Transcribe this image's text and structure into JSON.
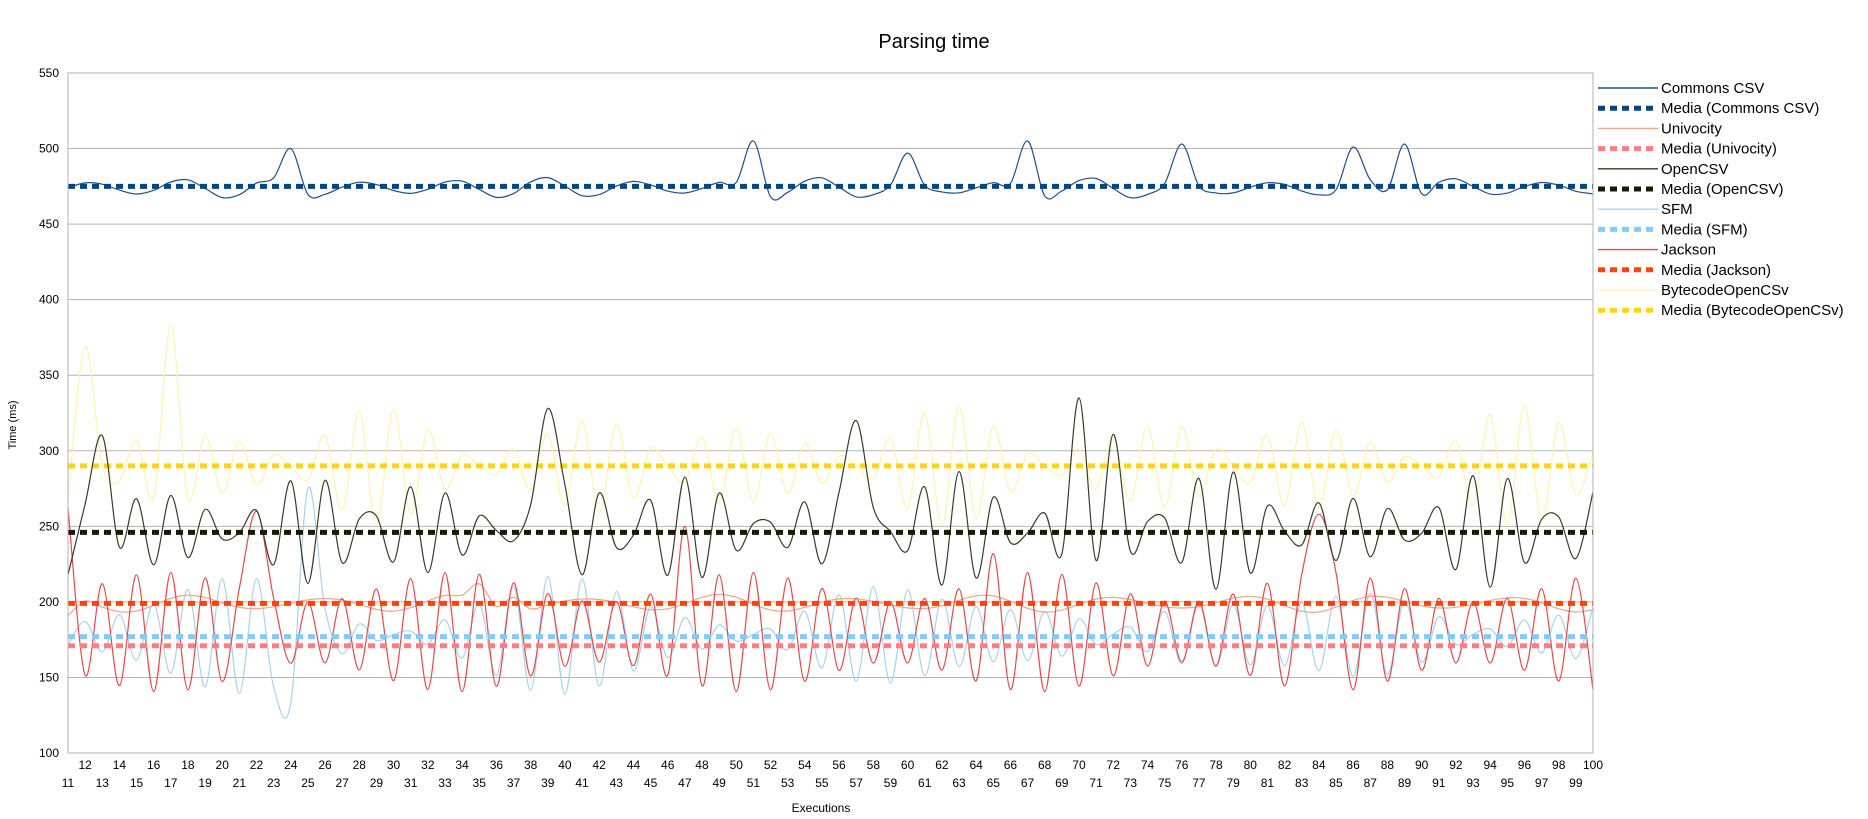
{
  "chart_data": {
    "type": "line",
    "title": "Parsing time",
    "xlabel": "Executions",
    "ylabel": "Time (ms)",
    "ylim": [
      100,
      550
    ],
    "yticks": [
      100,
      150,
      200,
      250,
      300,
      350,
      400,
      450,
      500,
      550
    ],
    "xlim": [
      11,
      100
    ],
    "grid": true,
    "legend_position": "right",
    "series": [
      {
        "name": "Commons CSV",
        "color": "#1f4e8c",
        "style": "solid",
        "mean": 474,
        "amp": 7,
        "period": 5.3,
        "peaks": [
          [
            24,
            500
          ],
          [
            51,
            505
          ],
          [
            60,
            497
          ],
          [
            67,
            505
          ],
          [
            76,
            503
          ],
          [
            86,
            501
          ],
          [
            89,
            503
          ]
        ]
      },
      {
        "name": "Media (Commons CSV)",
        "color": "#004586",
        "style": "dashed",
        "value": 475
      },
      {
        "name": "Univocity",
        "color": "#f4a58a",
        "style": "solid",
        "mean": 199,
        "amp": 6,
        "period": 7.7,
        "peaks": [
          [
            11,
            191
          ],
          [
            35,
            212
          ],
          [
            37,
            203
          ]
        ]
      },
      {
        "name": "Media (Univocity)",
        "color": "#ff7f7f",
        "style": "dashed",
        "value": 171
      },
      {
        "name": "OpenCSV",
        "color": "#3a3a2a",
        "style": "solid",
        "mean": 248,
        "amp": 40,
        "period": 2.3,
        "peaks": [
          [
            13,
            310
          ],
          [
            39,
            328
          ],
          [
            57,
            320
          ],
          [
            70,
            335
          ],
          [
            72,
            311
          ]
        ]
      },
      {
        "name": "Media (OpenCSV)",
        "color": "#1a1a00",
        "style": "dashed",
        "value": 246
      },
      {
        "name": "SFM",
        "color": "#a8d1f0",
        "style": "solid",
        "mean": 178,
        "amp": 40,
        "period": 2.1,
        "peaks": [
          [
            25,
            275
          ],
          [
            24,
            133
          ]
        ]
      },
      {
        "name": "Media (SFM)",
        "color": "#83caff",
        "style": "dashed",
        "value": 177
      },
      {
        "name": "Jackson",
        "color": "#e8484a",
        "style": "solid",
        "mean": 180,
        "amp": 40,
        "period": 2.0,
        "peaks": [
          [
            11,
            262
          ],
          [
            22,
            260
          ],
          [
            47,
            250
          ],
          [
            65,
            232
          ],
          [
            84,
            258
          ]
        ]
      },
      {
        "name": "Media (Jackson)",
        "color": "#ff420e",
        "style": "dashed",
        "value": 199
      },
      {
        "name": "BytecodeOpenCSv",
        "color": "#fff2b3",
        "style": "solid",
        "mean": 290,
        "amp": 40,
        "period": 2.2,
        "peaks": [
          [
            12,
            369
          ],
          [
            17,
            383
          ]
        ]
      },
      {
        "name": "Media (BytecodeOpenCSv)",
        "color": "#ffd320",
        "style": "dashed",
        "value": 290
      }
    ],
    "x_tick_labels_lower": [
      11,
      13,
      15,
      17,
      19,
      21,
      23,
      25,
      27,
      29,
      31,
      33,
      35,
      37,
      39,
      41,
      43,
      45,
      47,
      49,
      51,
      53,
      55,
      57,
      59,
      61,
      63,
      65,
      67,
      69,
      71,
      73,
      75,
      77,
      79,
      81,
      83,
      85,
      87,
      89,
      91,
      93,
      95,
      97,
      99
    ],
    "x_tick_labels_upper": [
      12,
      14,
      16,
      18,
      20,
      22,
      24,
      26,
      28,
      30,
      32,
      34,
      36,
      38,
      40,
      42,
      44,
      46,
      48,
      50,
      52,
      54,
      56,
      58,
      60,
      62,
      64,
      66,
      68,
      70,
      72,
      74,
      76,
      78,
      80,
      82,
      84,
      86,
      88,
      90,
      92,
      94,
      96,
      98,
      100
    ]
  }
}
